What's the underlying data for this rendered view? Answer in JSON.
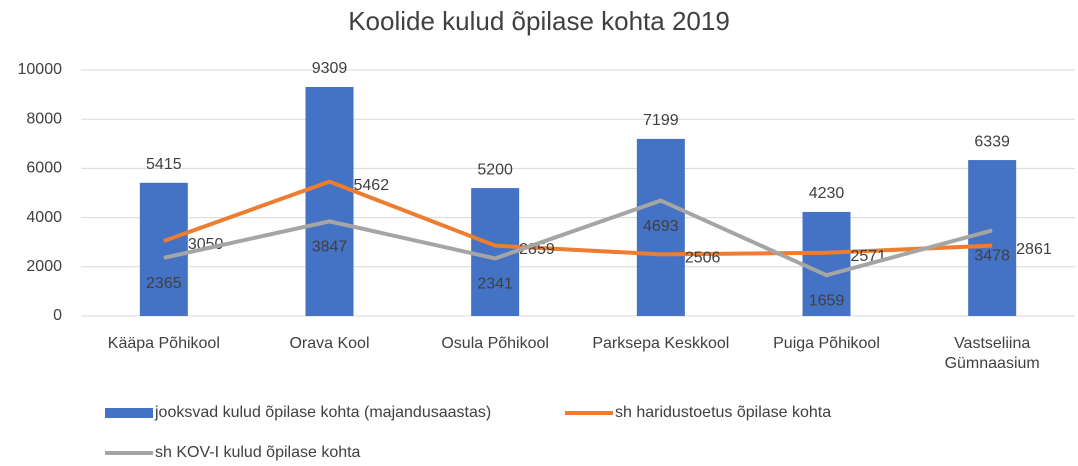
{
  "chart_data": {
    "type": "bar",
    "title": "Koolide kulud õpilase kohta 2019",
    "categories": [
      "Kääpa Põhikool",
      "Orava Kool",
      "Osula Põhikool",
      "Parksepa Keskkool",
      "Puiga Põhikool",
      "Vastseliina Gümnaasium"
    ],
    "series": [
      {
        "name": "jooksvad kulud õpilase kohta (majandusaastas)",
        "type": "bar",
        "color": "#4472c4",
        "values": [
          5415,
          9309,
          5200,
          7199,
          4230,
          6339
        ]
      },
      {
        "name": "sh haridustoetus õpilase kohta",
        "type": "line",
        "color": "#ed7d31",
        "values": [
          3050,
          5462,
          2859,
          2506,
          2571,
          2861
        ]
      },
      {
        "name": "sh KOV-I kulud õpilase kohta",
        "type": "line",
        "color": "#a5a5a5",
        "values": [
          2365,
          3847,
          2341,
          4693,
          1659,
          3478
        ]
      }
    ],
    "ylim": [
      0,
      10000
    ],
    "yticks": [
      0,
      2000,
      4000,
      6000,
      8000,
      10000
    ],
    "grid": true,
    "legend": "bottom"
  }
}
